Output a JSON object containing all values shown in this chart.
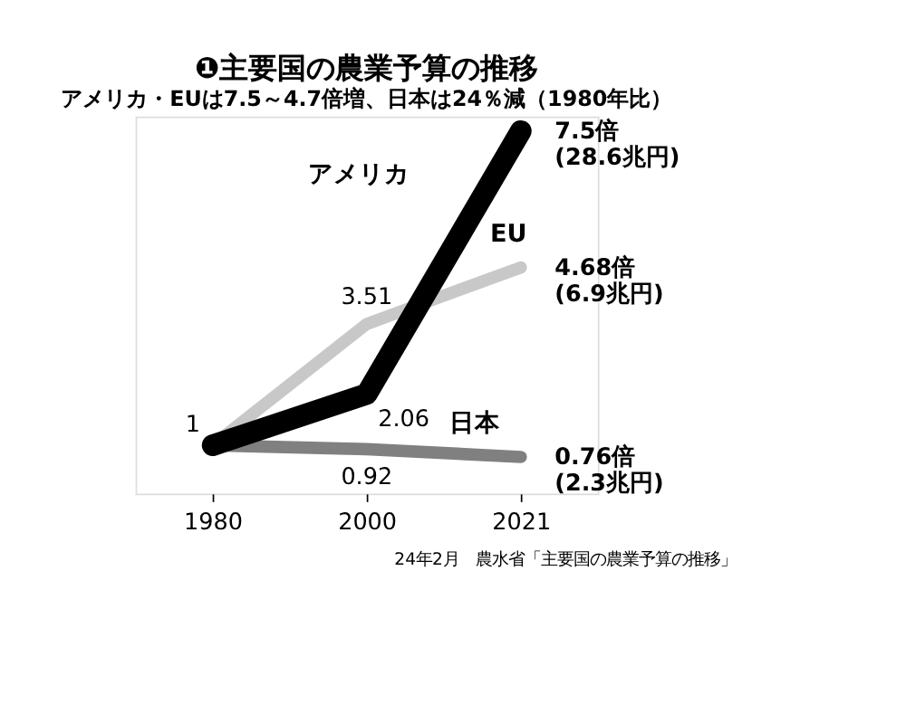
{
  "chart_data": {
    "type": "line",
    "title": "❶主要国の農業予算の推移",
    "subtitle": "アメリカ・EUは7.5～4.7倍増、日本は24％減（1980年比）",
    "categories": [
      "1980",
      "2000",
      "2021"
    ],
    "series": [
      {
        "name": "アメリカ",
        "color": "#000000",
        "values": [
          1,
          2.06,
          7.5
        ],
        "value_labels": [
          "1",
          "2.06",
          "7.5倍\n(28.6兆円)"
        ]
      },
      {
        "name": "EU",
        "color": "#c8c8c8",
        "values": [
          1,
          3.51,
          4.68
        ],
        "value_labels": [
          null,
          "3.51",
          "4.68倍\n(6.9兆円)"
        ]
      },
      {
        "name": "日本",
        "color": "#808080",
        "values": [
          1,
          0.92,
          0.76
        ],
        "value_labels": [
          null,
          "0.92",
          "0.76倍\n(2.3兆円)"
        ]
      }
    ],
    "annotations": [
      "24年2月　農水省「主要国の農業予算の推移」"
    ],
    "grid": false,
    "marker": "none"
  }
}
